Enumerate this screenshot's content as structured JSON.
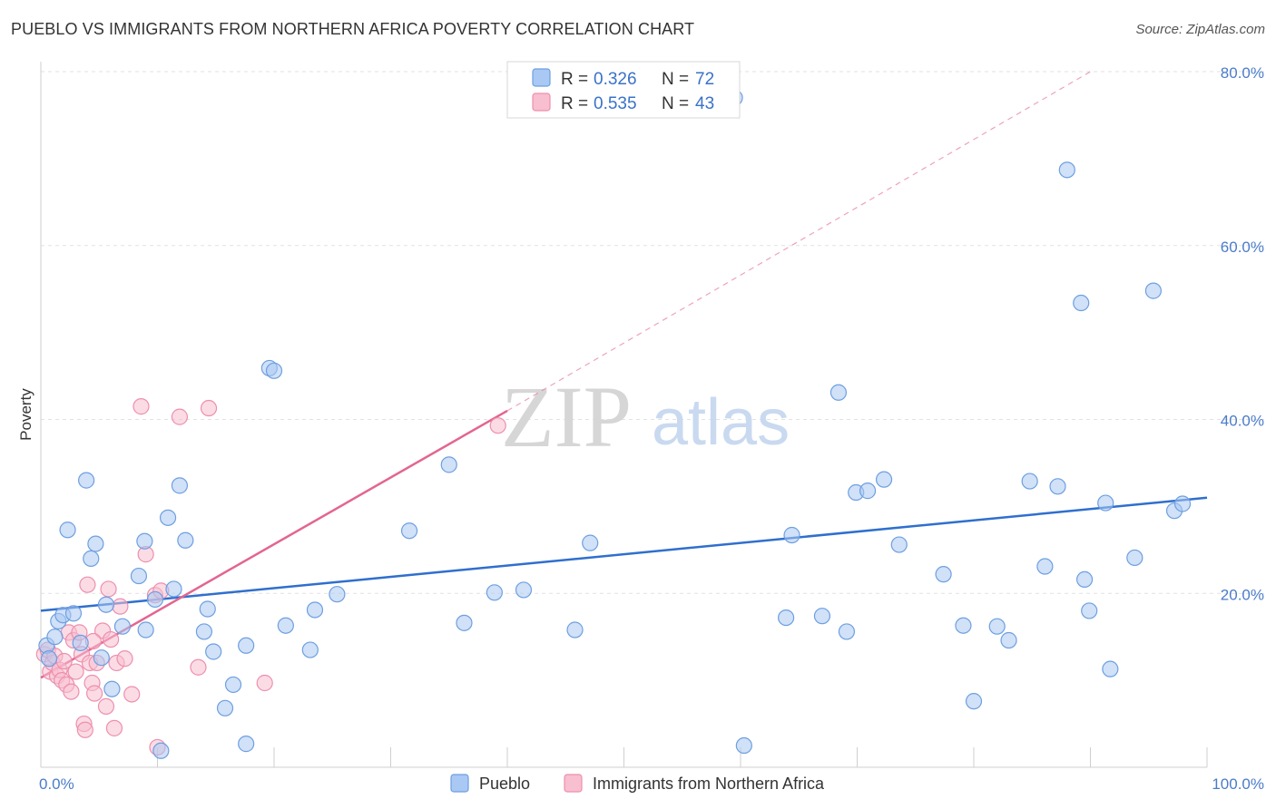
{
  "header": {
    "title": "PUEBLO VS IMMIGRANTS FROM NORTHERN AFRICA POVERTY CORRELATION CHART",
    "source": "Source: ZipAtlas.com"
  },
  "watermark": {
    "zip": "ZIP",
    "atlas": "atlas"
  },
  "colors": {
    "pueblo_fill": "#a9c8f3",
    "pueblo_stroke": "#6e9fe0",
    "pueblo_line": "#2f6fce",
    "immig_fill": "#f7bfd0",
    "immig_stroke": "#ee8fae",
    "immig_line": "#e36591",
    "axis_text": "#4a7cc9",
    "grid": "#e2e2e2"
  },
  "legend": {
    "rows": [
      {
        "r_label": "R =",
        "r_value": "0.326",
        "n_label": "N =",
        "n_value": "72"
      },
      {
        "r_label": "R =",
        "r_value": "0.535",
        "n_label": "N =",
        "n_value": "43"
      }
    ]
  },
  "chart_data": {
    "type": "scatter",
    "xlabel": "",
    "ylabel": "Poverty",
    "xlim": [
      0,
      100
    ],
    "ylim": [
      0,
      80
    ],
    "x_tick_labels": [
      "0.0%",
      "100.0%"
    ],
    "y_ticks": [
      {
        "value": 20,
        "label": "20.0%"
      },
      {
        "value": 40,
        "label": "40.0%"
      },
      {
        "value": 60,
        "label": "60.0%"
      },
      {
        "value": 80,
        "label": "80.0%"
      }
    ],
    "series": [
      {
        "name": "Pueblo",
        "r": 0.326,
        "n": 72,
        "trend": {
          "x0": 0,
          "y0": 18.0,
          "x1": 100,
          "y1": 31.0,
          "dashed_from": null
        },
        "points": [
          [
            0.5,
            14.0
          ],
          [
            0.7,
            12.5
          ],
          [
            1.2,
            15.0
          ],
          [
            1.5,
            16.8
          ],
          [
            1.9,
            17.5
          ],
          [
            2.3,
            27.3
          ],
          [
            2.8,
            17.7
          ],
          [
            3.4,
            14.3
          ],
          [
            3.9,
            33.0
          ],
          [
            4.3,
            24.0
          ],
          [
            4.7,
            25.7
          ],
          [
            5.2,
            12.6
          ],
          [
            5.6,
            18.7
          ],
          [
            6.1,
            9.0
          ],
          [
            7.0,
            16.2
          ],
          [
            8.4,
            22.0
          ],
          [
            8.9,
            26.0
          ],
          [
            9.0,
            15.8
          ],
          [
            9.8,
            19.3
          ],
          [
            10.9,
            28.7
          ],
          [
            11.4,
            20.5
          ],
          [
            11.9,
            32.4
          ],
          [
            12.4,
            26.1
          ],
          [
            14.0,
            15.6
          ],
          [
            14.3,
            18.2
          ],
          [
            14.8,
            13.3
          ],
          [
            15.8,
            6.8
          ],
          [
            16.5,
            9.5
          ],
          [
            17.6,
            2.7
          ],
          [
            17.6,
            14.0
          ],
          [
            19.6,
            45.9
          ],
          [
            20.0,
            45.6
          ],
          [
            21.0,
            16.3
          ],
          [
            23.1,
            13.5
          ],
          [
            23.5,
            18.1
          ],
          [
            25.4,
            19.9
          ],
          [
            31.6,
            27.2
          ],
          [
            35.0,
            34.8
          ],
          [
            36.3,
            16.6
          ],
          [
            38.9,
            20.1
          ],
          [
            41.4,
            20.4
          ],
          [
            45.8,
            15.8
          ],
          [
            47.1,
            25.8
          ],
          [
            59.5,
            77.0
          ],
          [
            60.3,
            2.5
          ],
          [
            63.9,
            17.2
          ],
          [
            64.4,
            26.7
          ],
          [
            67.0,
            17.4
          ],
          [
            68.4,
            43.1
          ],
          [
            69.1,
            15.6
          ],
          [
            69.9,
            31.6
          ],
          [
            70.9,
            31.8
          ],
          [
            72.3,
            33.1
          ],
          [
            73.6,
            25.6
          ],
          [
            77.4,
            22.2
          ],
          [
            79.1,
            16.3
          ],
          [
            80.0,
            7.6
          ],
          [
            82.0,
            16.2
          ],
          [
            83.0,
            14.6
          ],
          [
            84.8,
            32.9
          ],
          [
            86.1,
            23.1
          ],
          [
            87.2,
            32.3
          ],
          [
            88.0,
            68.7
          ],
          [
            89.2,
            53.4
          ],
          [
            89.5,
            21.6
          ],
          [
            89.9,
            18.0
          ],
          [
            91.3,
            30.4
          ],
          [
            91.7,
            11.3
          ],
          [
            93.8,
            24.1
          ],
          [
            95.4,
            54.8
          ],
          [
            97.2,
            29.5
          ],
          [
            97.9,
            30.3
          ],
          [
            10.3,
            1.9
          ]
        ]
      },
      {
        "name": "Immigrants from Northern Africa",
        "r": 0.535,
        "n": 43,
        "trend": {
          "x0": 0,
          "y0": 10.3,
          "x1": 40,
          "y1": 41.0,
          "dash_x1": 90,
          "dash_y1": 80.0
        },
        "points": [
          [
            0.3,
            13.0
          ],
          [
            0.6,
            13.5
          ],
          [
            0.8,
            11.0
          ],
          [
            1.0,
            12.0
          ],
          [
            1.2,
            12.8
          ],
          [
            1.4,
            10.5
          ],
          [
            1.6,
            11.2
          ],
          [
            1.8,
            10.0
          ],
          [
            2.0,
            12.2
          ],
          [
            2.2,
            9.5
          ],
          [
            2.4,
            15.5
          ],
          [
            2.6,
            8.7
          ],
          [
            2.8,
            14.6
          ],
          [
            3.0,
            11.0
          ],
          [
            3.3,
            15.5
          ],
          [
            3.5,
            13.0
          ],
          [
            3.7,
            5.0
          ],
          [
            3.8,
            4.3
          ],
          [
            4.0,
            21.0
          ],
          [
            4.2,
            12.0
          ],
          [
            4.4,
            9.7
          ],
          [
            4.6,
            8.5
          ],
          [
            4.8,
            12.0
          ],
          [
            5.3,
            15.7
          ],
          [
            5.6,
            7.0
          ],
          [
            5.8,
            20.5
          ],
          [
            6.0,
            14.7
          ],
          [
            6.3,
            4.5
          ],
          [
            6.5,
            12.0
          ],
          [
            6.8,
            18.5
          ],
          [
            7.2,
            12.5
          ],
          [
            7.8,
            8.4
          ],
          [
            8.6,
            41.5
          ],
          [
            9.0,
            24.5
          ],
          [
            9.8,
            19.8
          ],
          [
            10.0,
            2.3
          ],
          [
            10.3,
            20.3
          ],
          [
            11.9,
            40.3
          ],
          [
            13.5,
            11.5
          ],
          [
            14.4,
            41.3
          ],
          [
            19.2,
            9.7
          ],
          [
            39.2,
            39.3
          ],
          [
            4.5,
            14.5
          ]
        ]
      }
    ],
    "legend_position": "top-center",
    "bottom_legend": [
      "Pueblo",
      "Immigrants from Northern Africa"
    ],
    "grid": true
  }
}
